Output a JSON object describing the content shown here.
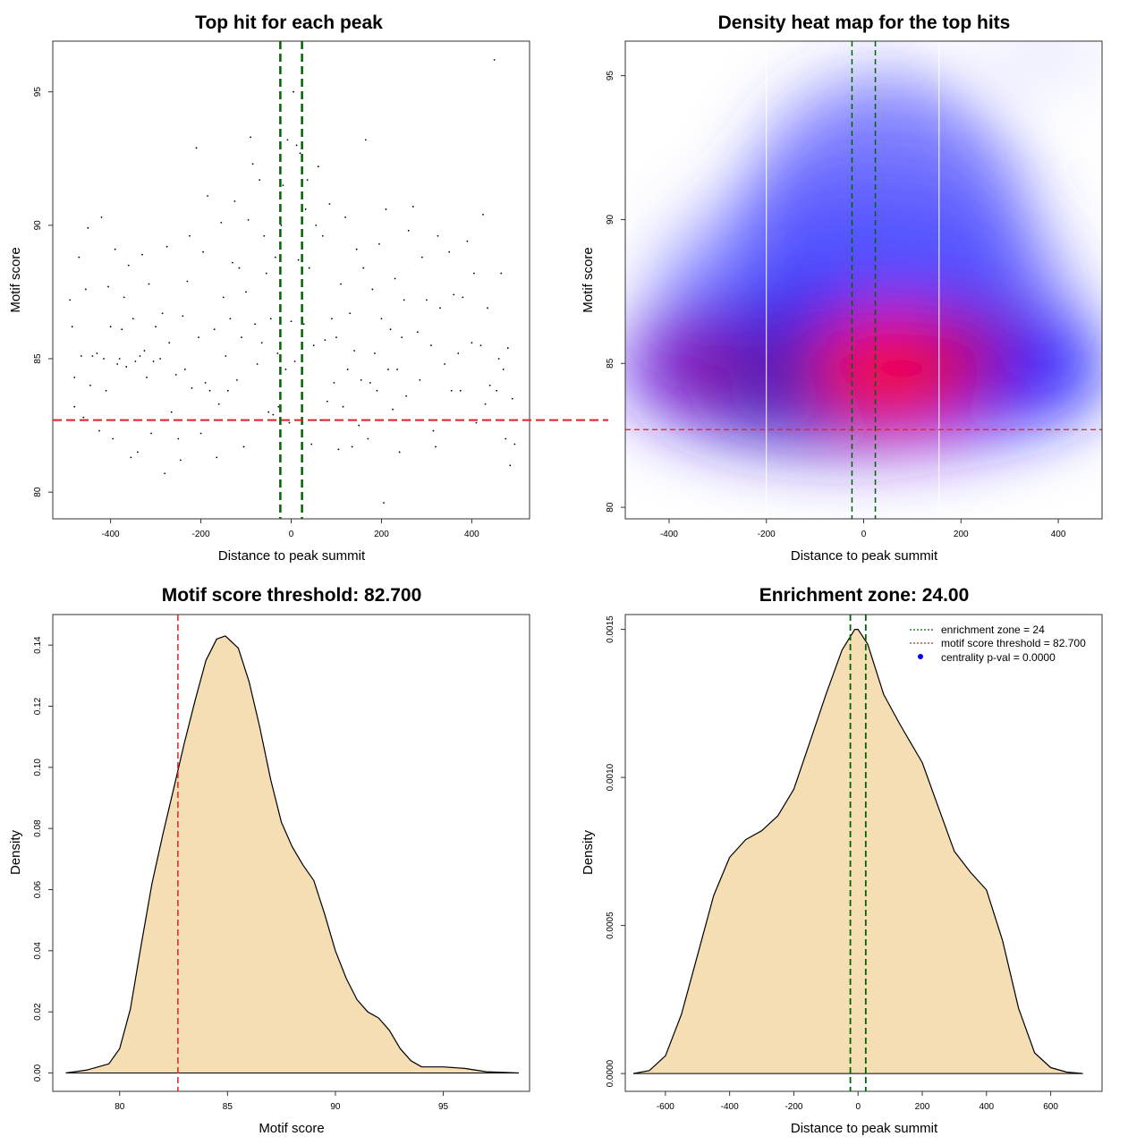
{
  "colors": {
    "green": "#006400",
    "red": "#dd2222",
    "fill": "#f5deb3",
    "heat_low": "#0000ff",
    "heat_high": "#ff0000"
  },
  "chart_data": [
    {
      "id": "top-hits-scatter",
      "type": "scatter",
      "title": "Top hit for each peak",
      "xlabel": "Distance to peak summit",
      "ylabel": "Motif score",
      "xlim": [
        -528,
        528
      ],
      "ylim": [
        79.0,
        96.9
      ],
      "xticks": [
        -400,
        -200,
        0,
        200,
        400
      ],
      "yticks": [
        80,
        85,
        90,
        95
      ],
      "vlines": [
        -24,
        24
      ],
      "hline": 82.7,
      "points": [
        [
          -490,
          87.2
        ],
        [
          -485,
          86.2
        ],
        [
          -480,
          83.2
        ],
        [
          -470,
          88.8
        ],
        [
          -465,
          85.1
        ],
        [
          -455,
          87.6
        ],
        [
          -450,
          89.9
        ],
        [
          -445,
          84.0
        ],
        [
          -440,
          85.1
        ],
        [
          -430,
          85.2
        ],
        [
          -425,
          82.3
        ],
        [
          -420,
          90.3
        ],
        [
          -415,
          85.0
        ],
        [
          -410,
          83.8
        ],
        [
          -405,
          87.7
        ],
        [
          -400,
          86.2
        ],
        [
          -395,
          82.0
        ],
        [
          -390,
          89.1
        ],
        [
          -385,
          84.8
        ],
        [
          -380,
          85.0
        ],
        [
          -370,
          87.3
        ],
        [
          -365,
          84.7
        ],
        [
          -360,
          88.5
        ],
        [
          -355,
          81.3
        ],
        [
          -350,
          86.5
        ],
        [
          -345,
          84.9
        ],
        [
          -340,
          81.5
        ],
        [
          -335,
          85.1
        ],
        [
          -330,
          88.9
        ],
        [
          -325,
          85.3
        ],
        [
          -320,
          84.3
        ],
        [
          -310,
          82.2
        ],
        [
          -305,
          84.9
        ],
        [
          -300,
          86.2
        ],
        [
          -290,
          85.0
        ],
        [
          -285,
          86.7
        ],
        [
          -280,
          80.7
        ],
        [
          -275,
          89.2
        ],
        [
          -270,
          85.6
        ],
        [
          -265,
          83.0
        ],
        [
          -250,
          82.0
        ],
        [
          -245,
          81.2
        ],
        [
          -240,
          86.6
        ],
        [
          -235,
          84.6
        ],
        [
          -230,
          87.9
        ],
        [
          -225,
          89.6
        ],
        [
          -220,
          83.9
        ],
        [
          -210,
          92.9
        ],
        [
          -205,
          85.8
        ],
        [
          -200,
          82.2
        ],
        [
          -195,
          89.0
        ],
        [
          -190,
          84.1
        ],
        [
          -185,
          91.1
        ],
        [
          -180,
          83.8
        ],
        [
          -170,
          86.1
        ],
        [
          -165,
          81.3
        ],
        [
          -160,
          83.3
        ],
        [
          -155,
          90.1
        ],
        [
          -150,
          87.3
        ],
        [
          -145,
          85.1
        ],
        [
          -140,
          83.8
        ],
        [
          -135,
          86.5
        ],
        [
          -130,
          88.6
        ],
        [
          -125,
          90.9
        ],
        [
          -120,
          84.2
        ],
        [
          -115,
          88.4
        ],
        [
          -110,
          85.8
        ],
        [
          -105,
          81.7
        ],
        [
          -100,
          87.5
        ],
        [
          -95,
          90.2
        ],
        [
          -90,
          93.3
        ],
        [
          -85,
          92.3
        ],
        [
          -80,
          86.3
        ],
        [
          -75,
          84.8
        ],
        [
          -70,
          91.7
        ],
        [
          -65,
          85.6
        ],
        [
          -60,
          89.6
        ],
        [
          -55,
          88.2
        ],
        [
          -50,
          83.0
        ],
        [
          -45,
          86.5
        ],
        [
          -40,
          82.9
        ],
        [
          -35,
          88.8
        ],
        [
          -30,
          85.2
        ],
        [
          -28,
          83.2
        ],
        [
          -22,
          90.0
        ],
        [
          -18,
          91.5
        ],
        [
          -12,
          84.6
        ],
        [
          -8,
          93.2
        ],
        [
          -4,
          82.6
        ],
        [
          0,
          86.4
        ],
        [
          5,
          95.0
        ],
        [
          8,
          84.9
        ],
        [
          12,
          93.0
        ],
        [
          16,
          88.7
        ],
        [
          20,
          92.7
        ],
        [
          28,
          86.3
        ],
        [
          32,
          90.6
        ],
        [
          36,
          91.7
        ],
        [
          40,
          88.4
        ],
        [
          45,
          81.8
        ],
        [
          50,
          85.5
        ],
        [
          55,
          90.0
        ],
        [
          60,
          92.2
        ],
        [
          65,
          82.7
        ],
        [
          70,
          89.6
        ],
        [
          75,
          85.7
        ],
        [
          80,
          83.4
        ],
        [
          85,
          90.8
        ],
        [
          90,
          86.5
        ],
        [
          95,
          84.1
        ],
        [
          100,
          85.8
        ],
        [
          105,
          81.6
        ],
        [
          110,
          87.8
        ],
        [
          115,
          83.2
        ],
        [
          120,
          90.3
        ],
        [
          125,
          84.6
        ],
        [
          130,
          86.7
        ],
        [
          135,
          81.7
        ],
        [
          140,
          85.3
        ],
        [
          145,
          89.1
        ],
        [
          150,
          82.5
        ],
        [
          155,
          84.2
        ],
        [
          160,
          88.4
        ],
        [
          165,
          93.2
        ],
        [
          170,
          82.0
        ],
        [
          175,
          84.1
        ],
        [
          180,
          87.6
        ],
        [
          185,
          85.2
        ],
        [
          190,
          83.8
        ],
        [
          195,
          89.3
        ],
        [
          200,
          86.5
        ],
        [
          205,
          79.6
        ],
        [
          210,
          90.6
        ],
        [
          215,
          84.6
        ],
        [
          220,
          86.1
        ],
        [
          225,
          83.1
        ],
        [
          230,
          88.0
        ],
        [
          235,
          84.6
        ],
        [
          240,
          81.5
        ],
        [
          245,
          85.8
        ],
        [
          250,
          87.2
        ],
        [
          255,
          83.6
        ],
        [
          260,
          89.8
        ],
        [
          270,
          90.7
        ],
        [
          280,
          86.0
        ],
        [
          285,
          84.2
        ],
        [
          290,
          88.8
        ],
        [
          300,
          87.2
        ],
        [
          310,
          85.5
        ],
        [
          315,
          82.3
        ],
        [
          320,
          81.7
        ],
        [
          325,
          89.6
        ],
        [
          330,
          86.9
        ],
        [
          340,
          84.8
        ],
        [
          350,
          89.0
        ],
        [
          355,
          83.8
        ],
        [
          360,
          87.4
        ],
        [
          370,
          85.2
        ],
        [
          375,
          83.8
        ],
        [
          380,
          87.3
        ],
        [
          390,
          89.4
        ],
        [
          400,
          85.6
        ],
        [
          405,
          88.2
        ],
        [
          410,
          82.6
        ],
        [
          420,
          85.5
        ],
        [
          425,
          90.4
        ],
        [
          430,
          83.3
        ],
        [
          435,
          86.9
        ],
        [
          440,
          84.0
        ],
        [
          450,
          96.2
        ],
        [
          455,
          83.8
        ],
        [
          460,
          85.0
        ],
        [
          465,
          88.2
        ],
        [
          470,
          84.6
        ],
        [
          475,
          82.0
        ],
        [
          480,
          85.4
        ],
        [
          485,
          81.0
        ],
        [
          490,
          83.5
        ],
        [
          495,
          81.8
        ],
        [
          -480,
          84.3
        ],
        [
          -460,
          82.8
        ],
        [
          -375,
          86.1
        ],
        [
          -315,
          87.8
        ],
        [
          -255,
          84.4
        ]
      ]
    },
    {
      "id": "density-heatmap",
      "type": "heatmap",
      "title": "Density heat map for the top hits",
      "xlabel": "Distance to peak summit",
      "ylabel": "Motif score",
      "xlim": [
        -490,
        490
      ],
      "ylim": [
        79.6,
        96.2
      ],
      "xticks": [
        -400,
        -200,
        0,
        200,
        400
      ],
      "yticks": [
        80,
        85,
        90,
        95
      ],
      "vlines": [
        -24,
        24
      ],
      "hline": 82.7,
      "white_vlines": [
        -200,
        155
      ]
    },
    {
      "id": "score-density",
      "type": "area",
      "title": "Motif score threshold: 82.700",
      "xlabel": "Motif score",
      "ylabel": "Density",
      "xlim": [
        76.9,
        99.0
      ],
      "ylim": [
        -0.006,
        0.15
      ],
      "xticks": [
        80,
        85,
        90,
        95
      ],
      "yticks": [
        0.0,
        0.02,
        0.04,
        0.06,
        0.08,
        0.1,
        0.12,
        0.14
      ],
      "ytick_labels": [
        "0.00",
        "0.02",
        "0.04",
        "0.06",
        "0.08",
        "0.10",
        "0.12",
        "0.14"
      ],
      "vline": 82.7,
      "x": [
        77.5,
        78.5,
        79.5,
        80.0,
        80.5,
        81.0,
        81.5,
        82.0,
        82.5,
        83.0,
        83.5,
        84.0,
        84.5,
        84.9,
        85.5,
        86.0,
        86.5,
        87.0,
        87.5,
        88.0,
        88.5,
        89.0,
        89.5,
        90.0,
        90.5,
        91.0,
        91.5,
        92.0,
        92.5,
        93.0,
        93.5,
        94.0,
        95.0,
        96.0,
        97.0,
        98.5
      ],
      "y": [
        0.0,
        0.001,
        0.003,
        0.008,
        0.021,
        0.042,
        0.062,
        0.078,
        0.093,
        0.108,
        0.122,
        0.135,
        0.142,
        0.143,
        0.139,
        0.128,
        0.113,
        0.096,
        0.082,
        0.074,
        0.068,
        0.063,
        0.052,
        0.04,
        0.031,
        0.024,
        0.02,
        0.018,
        0.014,
        0.008,
        0.004,
        0.002,
        0.002,
        0.0015,
        0.0004,
        0.0
      ]
    },
    {
      "id": "distance-density",
      "type": "area",
      "title": "Enrichment zone: 24.00",
      "xlabel": "Distance to peak summit",
      "ylabel": "Density",
      "xlim": [
        -725,
        760
      ],
      "ylim": [
        -6e-05,
        0.00155
      ],
      "xticks": [
        -600,
        -400,
        -200,
        0,
        200,
        400,
        600
      ],
      "yticks": [
        0.0,
        0.0005,
        0.001,
        0.0015
      ],
      "ytick_labels": [
        "0.0000",
        "0.0005",
        "0.0010",
        "0.0015"
      ],
      "vlines": [
        -24,
        24
      ],
      "x": [
        -700,
        -650,
        -600,
        -550,
        -500,
        -450,
        -400,
        -350,
        -300,
        -250,
        -200,
        -150,
        -100,
        -50,
        -10,
        0,
        30,
        80,
        130,
        200,
        250,
        300,
        350,
        400,
        450,
        500,
        550,
        600,
        650,
        700
      ],
      "y": [
        0.0,
        1e-05,
        6e-05,
        0.0002,
        0.0004,
        0.0006,
        0.00073,
        0.00079,
        0.00082,
        0.00087,
        0.00096,
        0.00112,
        0.00128,
        0.00143,
        0.0015,
        0.0015,
        0.00145,
        0.00128,
        0.00118,
        0.00105,
        0.0009,
        0.00075,
        0.00068,
        0.00062,
        0.00045,
        0.00022,
        7e-05,
        2e-05,
        5e-06,
        0.0
      ],
      "legend": [
        {
          "label": "enrichment zone = 24",
          "style": "dotted-green"
        },
        {
          "label": "motif score threshold = 82.700",
          "style": "dotted-red"
        },
        {
          "label": "centrality p-val = 0.0000",
          "style": "blue-dot"
        }
      ]
    }
  ]
}
